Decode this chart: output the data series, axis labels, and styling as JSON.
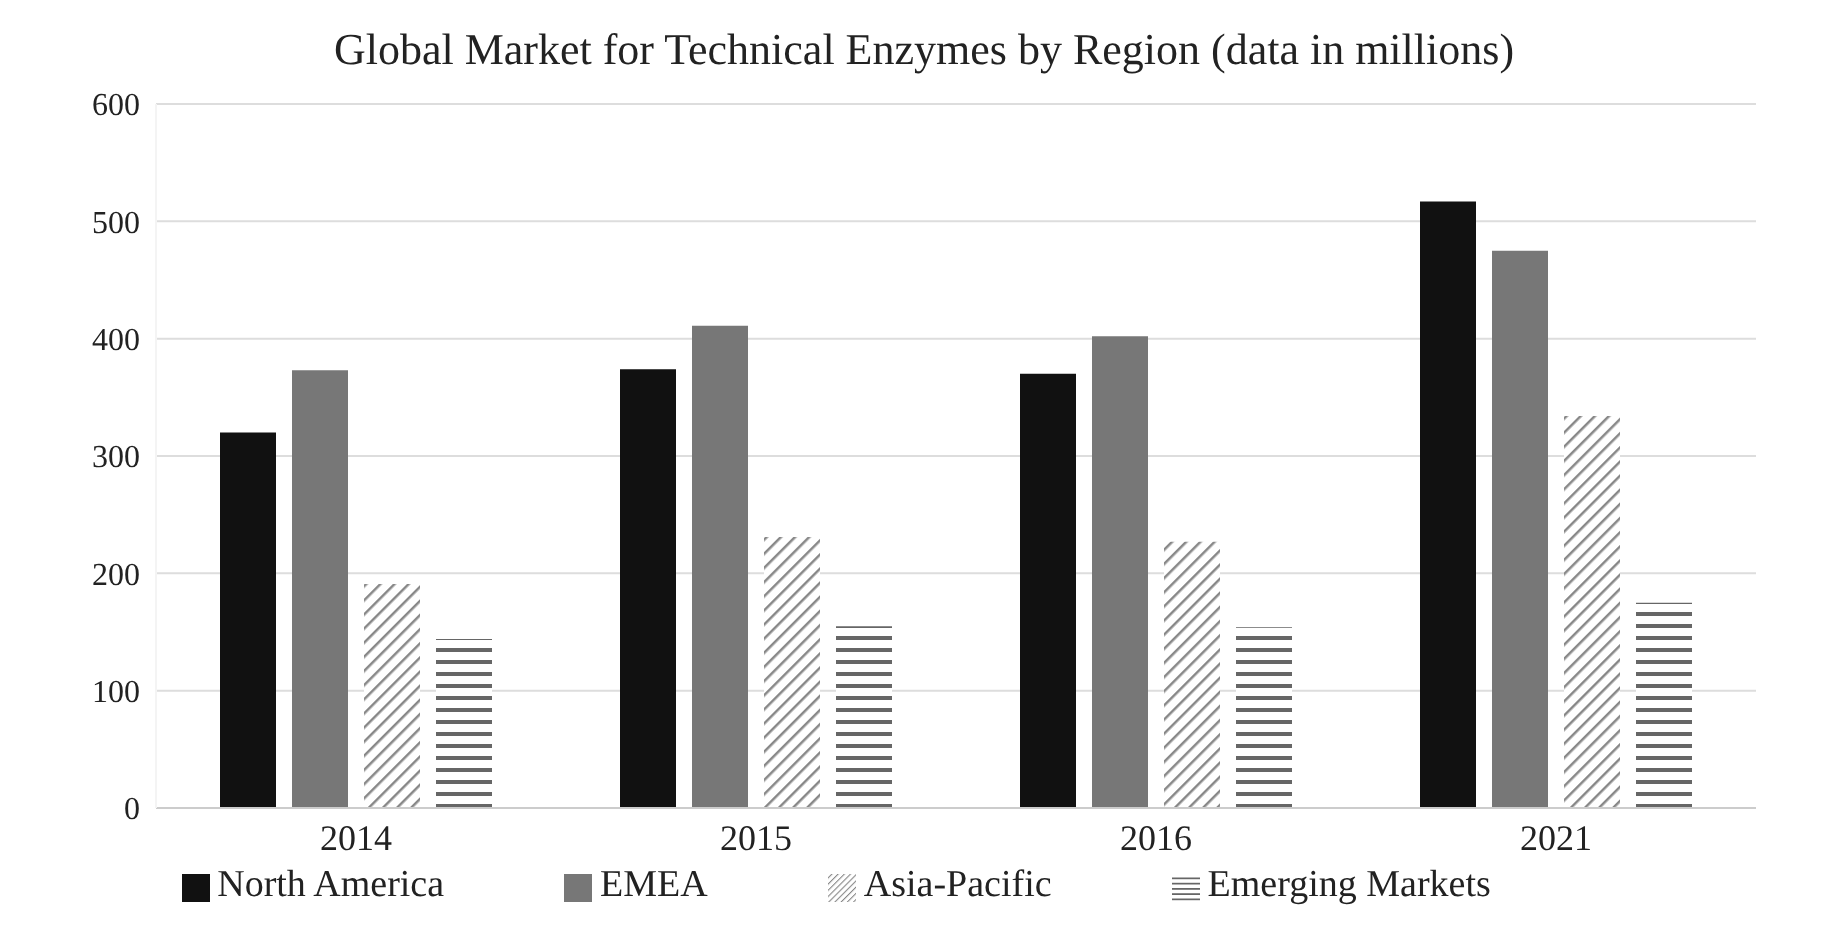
{
  "chart_data": {
    "type": "bar",
    "title": "Global Market for Technical Enzymes by Region (data in millions)",
    "categories": [
      "2014",
      "2015",
      "2016",
      "2021"
    ],
    "series": [
      {
        "name": "North America",
        "color": "#111111",
        "values": [
          320,
          374,
          370,
          517
        ]
      },
      {
        "name": "EMEA",
        "color": "#777777",
        "values": [
          373,
          411,
          402,
          475
        ]
      },
      {
        "name": "Asia-Pacific",
        "color": "#888888",
        "values": [
          191,
          231,
          227,
          334
        ]
      },
      {
        "name": "Emerging Markets",
        "color": "#666666",
        "values": [
          144,
          155,
          154,
          175
        ]
      }
    ],
    "ylim": [
      0,
      600
    ],
    "yticks": [
      0,
      100,
      200,
      300,
      400,
      500,
      600
    ],
    "grid": "y",
    "legend": "bottom"
  }
}
